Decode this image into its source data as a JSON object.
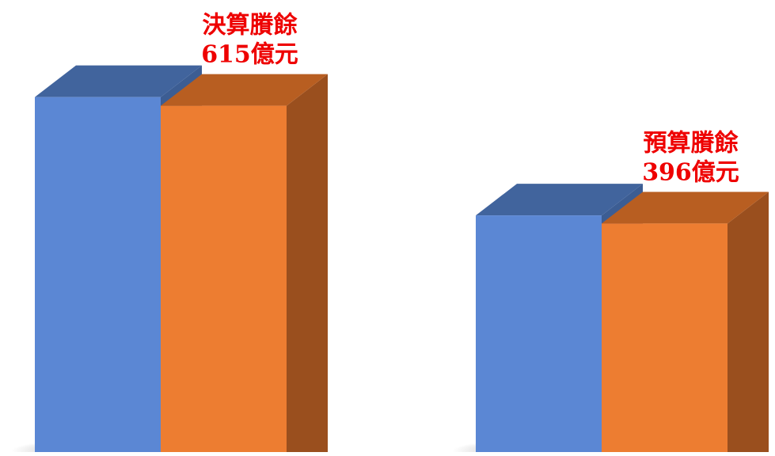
{
  "chart_data": {
    "type": "bar",
    "style": "3d",
    "grid": false,
    "legend": "none",
    "colors": {
      "series_a": "#5b87d4",
      "series_a_top": "#41649d",
      "series_a_side": "#3c5d93",
      "series_b": "#ed7d31",
      "series_b_top": "#b85e21",
      "series_b_side": "#9a4f1e",
      "label": "#ee0000"
    },
    "groups": [
      {
        "label_line1": "決算賸餘",
        "label_line2": "615億元",
        "values": [
          615,
          600
        ]
      },
      {
        "label_line1": "預算賸餘",
        "label_line2": "396億元",
        "values": [
          410,
          396
        ]
      }
    ],
    "ylim": [
      0,
      700
    ]
  }
}
